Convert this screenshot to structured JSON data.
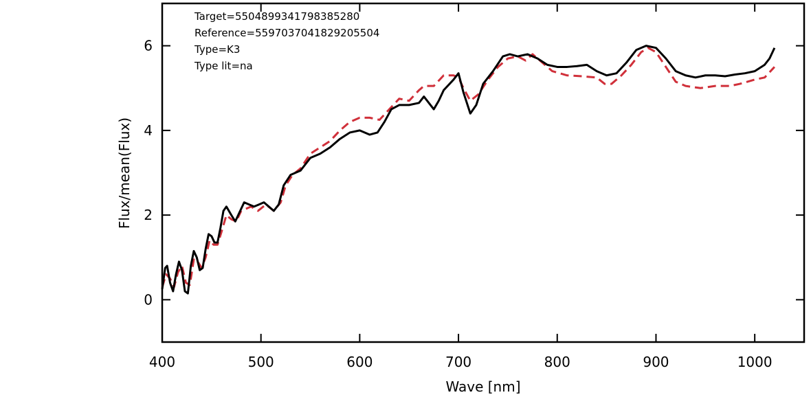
{
  "chart_data": {
    "type": "line",
    "xlabel": "Wave [nm]",
    "ylabel": "Flux/mean(Flux)",
    "annotations": [
      "Target=5504899341798385280",
      "Reference=5597037041829205504",
      "Type=K3",
      "Type lit=na"
    ],
    "xlim": [
      400,
      1050
    ],
    "ylim": [
      -1,
      7
    ],
    "xticks": [
      400,
      500,
      600,
      700,
      800,
      900,
      1000
    ],
    "yticks": [
      0,
      2,
      4,
      6
    ],
    "series": [
      {
        "color": "#000000",
        "dash": "solid",
        "x": [
          400,
          403,
          405,
          408,
          411,
          414,
          417,
          420,
          423,
          426,
          429,
          432,
          435,
          438,
          441,
          444,
          447,
          450,
          453,
          456,
          459,
          462,
          465,
          470,
          474,
          478,
          483,
          488,
          493,
          498,
          503,
          508,
          513,
          518,
          523,
          530,
          540,
          550,
          560,
          570,
          580,
          590,
          600,
          610,
          618,
          625,
          632,
          640,
          650,
          660,
          665,
          670,
          675,
          680,
          685,
          695,
          700,
          705,
          712,
          718,
          725,
          735,
          745,
          752,
          760,
          770,
          780,
          790,
          800,
          810,
          820,
          830,
          840,
          850,
          860,
          870,
          880,
          890,
          900,
          910,
          920,
          930,
          940,
          950,
          960,
          970,
          980,
          990,
          1000,
          1010,
          1015,
          1020
        ],
        "values": [
          0.25,
          0.75,
          0.8,
          0.4,
          0.2,
          0.6,
          0.9,
          0.7,
          0.2,
          0.15,
          0.8,
          1.15,
          1.0,
          0.7,
          0.75,
          1.2,
          1.55,
          1.5,
          1.35,
          1.35,
          1.7,
          2.1,
          2.2,
          2.0,
          1.85,
          2.05,
          2.3,
          2.25,
          2.2,
          2.25,
          2.3,
          2.2,
          2.1,
          2.25,
          2.7,
          2.95,
          3.05,
          3.35,
          3.45,
          3.6,
          3.8,
          3.95,
          4.0,
          3.9,
          3.95,
          4.2,
          4.5,
          4.6,
          4.6,
          4.65,
          4.8,
          4.65,
          4.5,
          4.7,
          4.95,
          5.2,
          5.35,
          4.9,
          4.4,
          4.6,
          5.1,
          5.4,
          5.75,
          5.8,
          5.75,
          5.8,
          5.7,
          5.55,
          5.5,
          5.5,
          5.52,
          5.55,
          5.4,
          5.3,
          5.35,
          5.6,
          5.9,
          6.0,
          5.95,
          5.7,
          5.4,
          5.3,
          5.25,
          5.3,
          5.3,
          5.28,
          5.32,
          5.35,
          5.4,
          5.55,
          5.7,
          5.95
        ]
      },
      {
        "color": "#d0303a",
        "dash": "dashed",
        "x": [
          400,
          404,
          408,
          412,
          416,
          420,
          424,
          428,
          432,
          436,
          440,
          444,
          448,
          452,
          456,
          460,
          465,
          470,
          475,
          480,
          490,
          497,
          505,
          513,
          520,
          525,
          532,
          540,
          550,
          560,
          570,
          580,
          590,
          600,
          610,
          620,
          630,
          640,
          650,
          660,
          665,
          675,
          685,
          695,
          700,
          705,
          712,
          720,
          730,
          740,
          750,
          760,
          768,
          775,
          785,
          795,
          810,
          825,
          840,
          848,
          855,
          865,
          875,
          885,
          892,
          900,
          910,
          920,
          930,
          945,
          960,
          975,
          985,
          1000,
          1010,
          1020
        ],
        "values": [
          0.3,
          0.6,
          0.5,
          0.3,
          0.65,
          0.8,
          0.4,
          0.35,
          0.95,
          0.9,
          0.75,
          1.0,
          1.4,
          1.3,
          1.3,
          1.6,
          2.0,
          1.9,
          1.85,
          2.1,
          2.2,
          2.1,
          2.25,
          2.1,
          2.3,
          2.7,
          2.95,
          3.1,
          3.45,
          3.6,
          3.75,
          4.0,
          4.2,
          4.3,
          4.3,
          4.25,
          4.5,
          4.75,
          4.7,
          4.95,
          5.05,
          5.05,
          5.3,
          5.3,
          5.25,
          5.0,
          4.7,
          4.85,
          5.2,
          5.5,
          5.7,
          5.75,
          5.65,
          5.8,
          5.6,
          5.4,
          5.3,
          5.28,
          5.25,
          5.1,
          5.1,
          5.3,
          5.55,
          5.85,
          5.95,
          5.85,
          5.5,
          5.15,
          5.05,
          5.0,
          5.05,
          5.05,
          5.1,
          5.2,
          5.25,
          5.5
        ]
      }
    ]
  }
}
